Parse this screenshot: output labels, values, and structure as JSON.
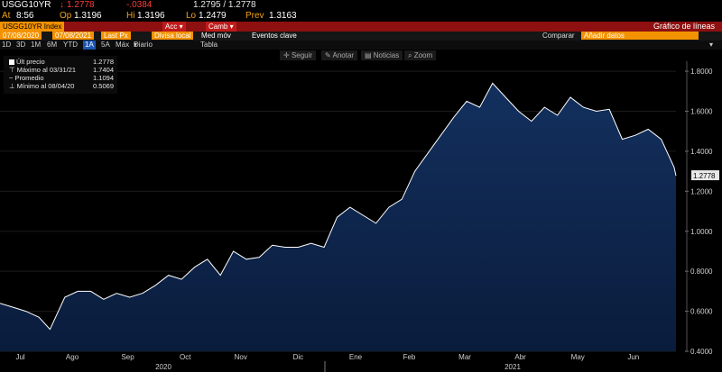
{
  "quote": {
    "ticker": "USGG10YR",
    "last": "1.2778",
    "change": "-.0384",
    "bid_ask": "1.2795 / 1.2778",
    "time_label": "At",
    "time": "8:56",
    "open_label": "Op",
    "open": "1.3196",
    "high_label": "Hi",
    "high": "1.3196",
    "low_label": "Lo",
    "low": "1.2479",
    "prev_label": "Prev",
    "prev": "1.3163"
  },
  "header": {
    "index_tag": "USGG10YR Index",
    "acc": "Acc",
    "camb": "Camb",
    "title": "Gráfico de líneas"
  },
  "controls": {
    "date_start": "07/08/2020",
    "date_end": "07/08/2021",
    "price_field": "Last Px",
    "currency": "Divisa local",
    "moving_avg": "Med móv",
    "events": "Eventos clave",
    "compare_label": "Comparar",
    "compare_placeholder": "Añadir datos"
  },
  "periods": [
    "1D",
    "3D",
    "1M",
    "6M",
    "YTD",
    "1A",
    "5A",
    "Máx",
    "Diario"
  ],
  "selected_period": "1A",
  "table_label": "Tabla",
  "tools": [
    "Seguir",
    "Anotar",
    "Noticias",
    "Zoom"
  ],
  "legend": [
    {
      "label": "Últ precio",
      "value": "1.2778"
    },
    {
      "label": "Máximo al 03/31/21",
      "value": "1.7404"
    },
    {
      "label": "Promedio",
      "value": "1.1094"
    },
    {
      "label": "Mínimo al 08/04/20",
      "value": "0.5069"
    }
  ],
  "chart_data": {
    "type": "area",
    "ylim": [
      0.4,
      1.85
    ],
    "yticks": [
      "0.4000",
      "0.6000",
      "0.8000",
      "1.0000",
      "1.2000",
      "1.4000",
      "1.6000",
      "1.8000"
    ],
    "ytick_values": [
      0.4,
      0.6,
      0.8,
      1.0,
      1.2,
      1.4,
      1.6,
      1.8
    ],
    "months": [
      "Jul",
      "Ago",
      "Sep",
      "Oct",
      "Nov",
      "Dic",
      "Ene",
      "Feb",
      "Mar",
      "Abr",
      "May",
      "Jun"
    ],
    "years": [
      "2020",
      "2021"
    ],
    "last_label": "1.2778",
    "area_color": "#0c2248",
    "line_color": "#ffffff",
    "series": [
      {
        "x": [
          "2020-07-08",
          "2020-07-15",
          "2020-07-22",
          "2020-07-29",
          "2020-08-04",
          "2020-08-12",
          "2020-08-19",
          "2020-08-26",
          "2020-09-02",
          "2020-09-09",
          "2020-09-16",
          "2020-09-23",
          "2020-09-30",
          "2020-10-07",
          "2020-10-14",
          "2020-10-21",
          "2020-10-28",
          "2020-11-04",
          "2020-11-11",
          "2020-11-18",
          "2020-11-25",
          "2020-12-02",
          "2020-12-09",
          "2020-12-16",
          "2020-12-23",
          "2020-12-30",
          "2021-01-06",
          "2021-01-13",
          "2021-01-20",
          "2021-01-27",
          "2021-02-03",
          "2021-02-10",
          "2021-02-17",
          "2021-02-24",
          "2021-03-03",
          "2021-03-10",
          "2021-03-17",
          "2021-03-24",
          "2021-03-31",
          "2021-04-07",
          "2021-04-14",
          "2021-04-21",
          "2021-04-28",
          "2021-05-05",
          "2021-05-12",
          "2021-05-19",
          "2021-05-26",
          "2021-06-02",
          "2021-06-09",
          "2021-06-16",
          "2021-06-23",
          "2021-06-30",
          "2021-07-07",
          "2021-07-08"
        ],
        "values": [
          0.64,
          0.62,
          0.6,
          0.57,
          0.51,
          0.67,
          0.7,
          0.7,
          0.66,
          0.69,
          0.67,
          0.69,
          0.73,
          0.78,
          0.76,
          0.82,
          0.86,
          0.78,
          0.9,
          0.86,
          0.87,
          0.93,
          0.92,
          0.92,
          0.94,
          0.92,
          1.07,
          1.12,
          1.08,
          1.04,
          1.12,
          1.16,
          1.3,
          1.39,
          1.48,
          1.57,
          1.65,
          1.62,
          1.74,
          1.67,
          1.6,
          1.55,
          1.62,
          1.58,
          1.67,
          1.62,
          1.6,
          1.61,
          1.46,
          1.48,
          1.51,
          1.46,
          1.32,
          1.2778
        ]
      }
    ]
  }
}
